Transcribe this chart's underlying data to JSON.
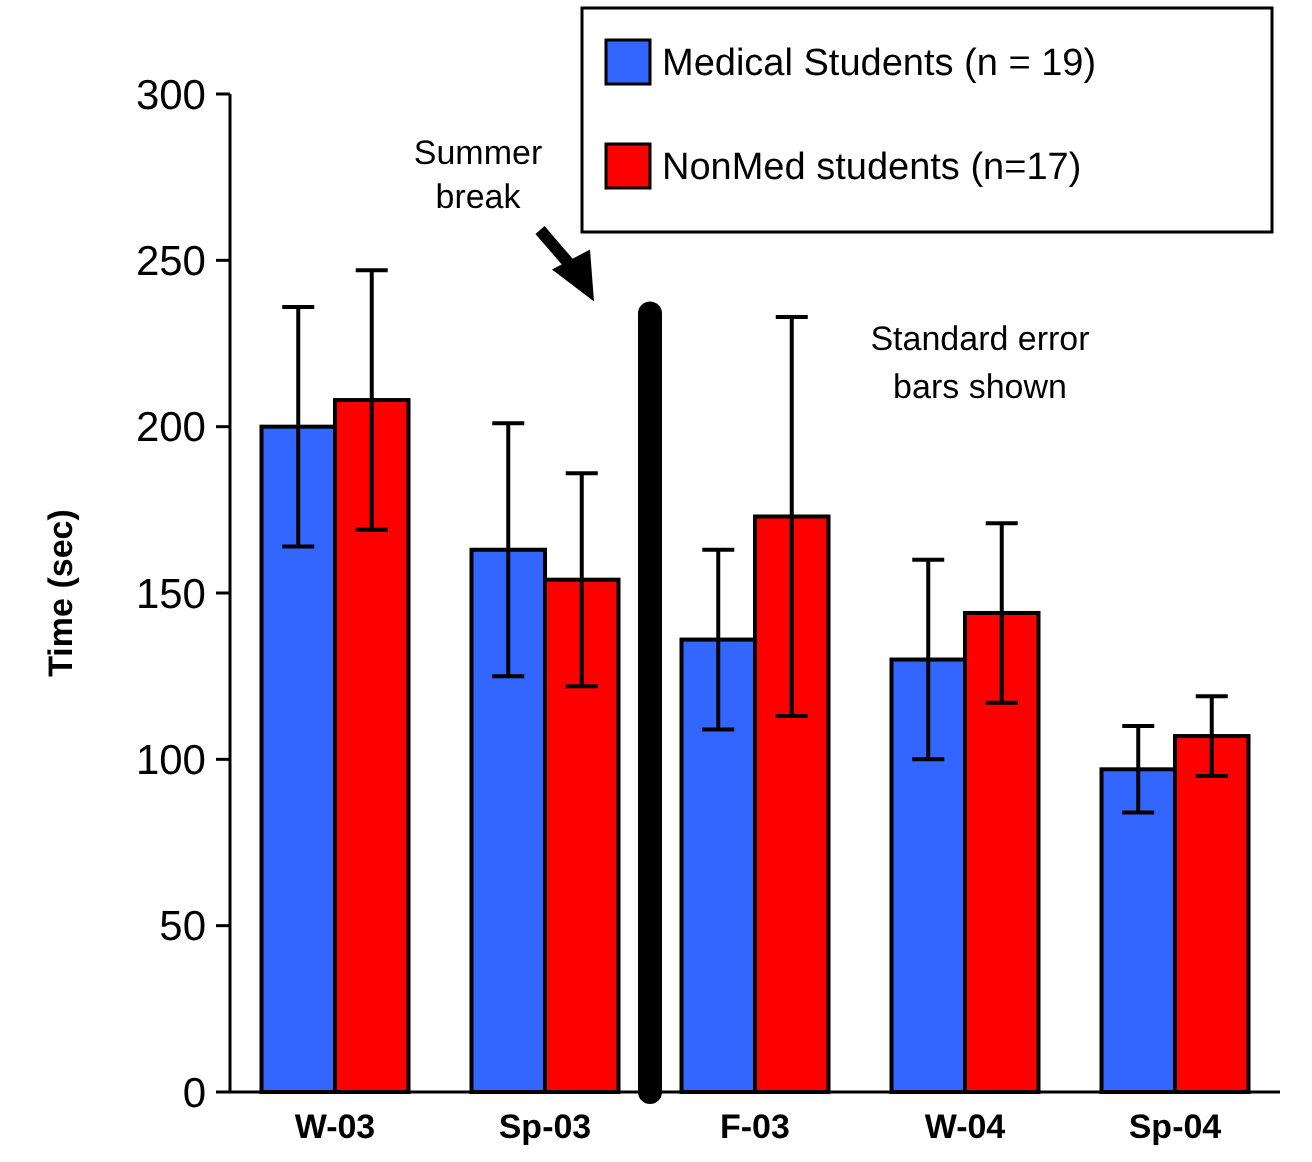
{
  "chart_data": {
    "type": "bar",
    "ylabel": "Time (sec)",
    "categories": [
      "W-03",
      "Sp-03",
      "F-03",
      "W-04",
      "Sp-04"
    ],
    "series": [
      {
        "name": "Medical Students (n = 19)",
        "color": "#3366ff",
        "values": [
          200,
          163,
          136,
          130,
          97
        ],
        "errors": [
          36,
          38,
          27,
          30,
          13
        ]
      },
      {
        "name": "NonMed students (n=17)",
        "color": "#ff0000",
        "values": [
          208,
          154,
          173,
          144,
          107
        ],
        "errors": [
          39,
          32,
          60,
          27,
          12
        ]
      }
    ],
    "ylim": [
      0,
      300
    ],
    "yticks": [
      0,
      50,
      100,
      150,
      200,
      250,
      300
    ],
    "grid": false,
    "legend": "top right",
    "annotations": [
      "Summer break",
      "Standard error bars shown"
    ]
  }
}
